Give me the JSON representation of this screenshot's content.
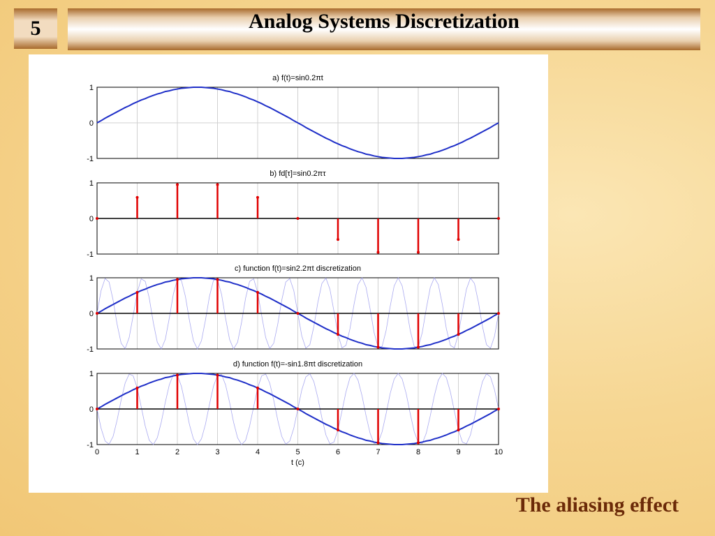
{
  "slide": {
    "number": "5",
    "title": "Analog Systems Discretization",
    "caption": "The aliasing effect"
  },
  "chart_data": [
    {
      "type": "line",
      "title": "a) f(t)=sin0.2πt",
      "xlim": [
        0,
        10
      ],
      "ylim": [
        -1,
        1
      ],
      "xticks": [
        0,
        1,
        2,
        3,
        4,
        5,
        6,
        7,
        8,
        9,
        10
      ],
      "yticks": [
        -1,
        0,
        1
      ],
      "grid": true,
      "x": [
        0,
        0.1,
        0.2,
        0.3,
        0.4,
        0.5,
        0.6,
        0.7,
        0.8,
        0.9,
        1,
        1.1,
        1.2,
        1.3,
        1.4,
        1.5,
        1.6,
        1.7,
        1.8,
        1.9,
        2,
        2.1,
        2.2,
        2.3,
        2.4,
        2.5,
        2.6,
        2.7,
        2.8,
        2.9,
        3,
        3.1,
        3.2,
        3.3,
        3.4,
        3.5,
        3.6,
        3.7,
        3.8,
        3.9,
        4,
        4.1,
        4.2,
        4.3,
        4.4,
        4.5,
        4.6,
        4.7,
        4.8,
        4.9,
        5,
        5.1,
        5.2,
        5.3,
        5.4,
        5.5,
        5.6,
        5.7,
        5.8,
        5.9,
        6,
        6.1,
        6.2,
        6.3,
        6.4,
        6.5,
        6.6,
        6.7,
        6.8,
        6.9,
        7,
        7.1,
        7.2,
        7.3,
        7.4,
        7.5,
        7.6,
        7.7,
        7.8,
        7.9,
        8,
        8.1,
        8.2,
        8.3,
        8.4,
        8.5,
        8.6,
        8.7,
        8.8,
        8.9,
        9,
        9.1,
        9.2,
        9.3,
        9.4,
        9.5,
        9.6,
        9.7,
        9.8,
        9.9,
        10
      ],
      "series": [
        {
          "type": "line",
          "color": "#1f2fc8",
          "values": [
            0,
            0.06,
            0.13,
            0.19,
            0.25,
            0.31,
            0.37,
            0.43,
            0.48,
            0.54,
            0.59,
            0.64,
            0.68,
            0.73,
            0.77,
            0.81,
            0.84,
            0.88,
            0.9,
            0.93,
            0.95,
            0.97,
            0.98,
            0.99,
            1,
            1,
            1,
            0.99,
            0.98,
            0.97,
            0.95,
            0.93,
            0.9,
            0.88,
            0.84,
            0.81,
            0.77,
            0.73,
            0.68,
            0.64,
            0.59,
            0.54,
            0.48,
            0.43,
            0.37,
            0.31,
            0.25,
            0.19,
            0.13,
            0.06,
            0,
            -0.06,
            -0.13,
            -0.19,
            -0.25,
            -0.31,
            -0.37,
            -0.43,
            -0.48,
            -0.54,
            -0.59,
            -0.64,
            -0.68,
            -0.73,
            -0.77,
            -0.81,
            -0.84,
            -0.88,
            -0.9,
            -0.93,
            -0.95,
            -0.97,
            -0.98,
            -0.99,
            -1,
            -1,
            -1,
            -0.99,
            -0.98,
            -0.97,
            -0.95,
            -0.93,
            -0.9,
            -0.88,
            -0.84,
            -0.81,
            -0.77,
            -0.73,
            -0.68,
            -0.64,
            -0.59,
            -0.54,
            -0.48,
            -0.43,
            -0.37,
            -0.31,
            -0.25,
            -0.19,
            -0.13,
            -0.06,
            0
          ]
        }
      ]
    },
    {
      "type": "stem",
      "title": "b) fd[τ]=sin0.2πτ",
      "xlim": [
        0,
        10
      ],
      "ylim": [
        -1,
        1
      ],
      "xticks": [
        0,
        1,
        2,
        3,
        4,
        5,
        6,
        7,
        8,
        9,
        10
      ],
      "yticks": [
        -1,
        0,
        1
      ],
      "grid": true,
      "series": [
        {
          "type": "stem",
          "color": "#e00000",
          "x": [
            0,
            1,
            2,
            3,
            4,
            5,
            6,
            7,
            8,
            9,
            10
          ],
          "values": [
            0,
            0.59,
            0.95,
            0.95,
            0.59,
            0,
            -0.59,
            -0.95,
            -0.95,
            -0.59,
            0
          ]
        }
      ]
    },
    {
      "type": "line",
      "title": "c) function f(t)=sin2.2πt discretization",
      "xlim": [
        0,
        10
      ],
      "ylim": [
        -1,
        1
      ],
      "xticks": [
        0,
        1,
        2,
        3,
        4,
        5,
        6,
        7,
        8,
        9,
        10
      ],
      "yticks": [
        -1,
        0,
        1
      ],
      "grid": true,
      "x": [
        0,
        0.1,
        0.2,
        0.3,
        0.4,
        0.5,
        0.6,
        0.7,
        0.8,
        0.9,
        1,
        1.1,
        1.2,
        1.3,
        1.4,
        1.5,
        1.6,
        1.7,
        1.8,
        1.9,
        2,
        2.1,
        2.2,
        2.3,
        2.4,
        2.5,
        2.6,
        2.7,
        2.8,
        2.9,
        3,
        3.1,
        3.2,
        3.3,
        3.4,
        3.5,
        3.6,
        3.7,
        3.8,
        3.9,
        4,
        4.1,
        4.2,
        4.3,
        4.4,
        4.5,
        4.6,
        4.7,
        4.8,
        4.9,
        5,
        5.1,
        5.2,
        5.3,
        5.4,
        5.5,
        5.6,
        5.7,
        5.8,
        5.9,
        6,
        6.1,
        6.2,
        6.3,
        6.4,
        6.5,
        6.6,
        6.7,
        6.8,
        6.9,
        7,
        7.1,
        7.2,
        7.3,
        7.4,
        7.5,
        7.6,
        7.7,
        7.8,
        7.9,
        8,
        8.1,
        8.2,
        8.3,
        8.4,
        8.5,
        8.6,
        8.7,
        8.8,
        8.9,
        9,
        9.1,
        9.2,
        9.3,
        9.4,
        9.5,
        9.6,
        9.7,
        9.8,
        9.9,
        10
      ],
      "series": [
        {
          "type": "line",
          "color": "#a9a9f0",
          "values": [
            0,
            0.64,
            0.98,
            0.88,
            0.37,
            -0.31,
            -0.84,
            -0.99,
            -0.68,
            -0.06,
            0.59,
            0.97,
            0.9,
            0.43,
            -0.25,
            -0.81,
            -1,
            -0.73,
            -0.13,
            0.54,
            0.95,
            0.93,
            0.48,
            -0.19,
            -0.77,
            -1,
            -0.77,
            -0.19,
            0.48,
            0.93,
            0.95,
            0.54,
            -0.13,
            -0.73,
            -1,
            -0.81,
            -0.25,
            0.43,
            0.9,
            0.97,
            0.59,
            -0.06,
            -0.68,
            -0.99,
            -0.84,
            -0.31,
            0.37,
            0.88,
            0.98,
            0.64,
            0,
            -0.64,
            -0.98,
            -0.88,
            -0.37,
            0.31,
            0.84,
            0.99,
            0.68,
            0.06,
            -0.59,
            -0.97,
            -0.9,
            -0.43,
            0.25,
            0.81,
            1,
            0.73,
            0.13,
            -0.54,
            -0.95,
            -0.93,
            -0.48,
            0.19,
            0.77,
            1,
            0.77,
            0.19,
            -0.48,
            -0.93,
            -0.95,
            -0.54,
            0.13,
            0.73,
            1,
            0.81,
            0.25,
            -0.43,
            -0.9,
            -0.97,
            -0.59,
            0.06,
            0.68,
            0.99,
            0.84,
            0.31,
            -0.37,
            -0.88,
            -0.98,
            -0.64,
            0
          ]
        },
        {
          "type": "line",
          "color": "#1f2fc8",
          "values": [
            0,
            0.06,
            0.13,
            0.19,
            0.25,
            0.31,
            0.37,
            0.43,
            0.48,
            0.54,
            0.59,
            0.64,
            0.68,
            0.73,
            0.77,
            0.81,
            0.84,
            0.88,
            0.9,
            0.93,
            0.95,
            0.97,
            0.98,
            0.99,
            1,
            1,
            1,
            0.99,
            0.98,
            0.97,
            0.95,
            0.93,
            0.9,
            0.88,
            0.84,
            0.81,
            0.77,
            0.73,
            0.68,
            0.64,
            0.59,
            0.54,
            0.48,
            0.43,
            0.37,
            0.31,
            0.25,
            0.19,
            0.13,
            0.06,
            0,
            -0.06,
            -0.13,
            -0.19,
            -0.25,
            -0.31,
            -0.37,
            -0.43,
            -0.48,
            -0.54,
            -0.59,
            -0.64,
            -0.68,
            -0.73,
            -0.77,
            -0.81,
            -0.84,
            -0.88,
            -0.9,
            -0.93,
            -0.95,
            -0.97,
            -0.98,
            -0.99,
            -1,
            -1,
            -1,
            -0.99,
            -0.98,
            -0.97,
            -0.95,
            -0.93,
            -0.9,
            -0.88,
            -0.84,
            -0.81,
            -0.77,
            -0.73,
            -0.68,
            -0.64,
            -0.59,
            -0.54,
            -0.48,
            -0.43,
            -0.37,
            -0.31,
            -0.25,
            -0.19,
            -0.13,
            -0.06,
            0
          ]
        },
        {
          "type": "stem",
          "color": "#e00000",
          "x": [
            0,
            1,
            2,
            3,
            4,
            5,
            6,
            7,
            8,
            9,
            10
          ],
          "values": [
            0,
            0.59,
            0.95,
            0.95,
            0.59,
            0,
            -0.59,
            -0.95,
            -0.95,
            -0.59,
            0
          ]
        }
      ]
    },
    {
      "type": "line",
      "title": "d) function f(t)=-sin1.8πt discretization",
      "xlabel": "t (c)",
      "xlim": [
        0,
        10
      ],
      "ylim": [
        -1,
        1
      ],
      "xticks": [
        0,
        1,
        2,
        3,
        4,
        5,
        6,
        7,
        8,
        9,
        10
      ],
      "yticks": [
        -1,
        0,
        1
      ],
      "grid": true,
      "x": [
        0,
        0.1,
        0.2,
        0.3,
        0.4,
        0.5,
        0.6,
        0.7,
        0.8,
        0.9,
        1,
        1.1,
        1.2,
        1.3,
        1.4,
        1.5,
        1.6,
        1.7,
        1.8,
        1.9,
        2,
        2.1,
        2.2,
        2.3,
        2.4,
        2.5,
        2.6,
        2.7,
        2.8,
        2.9,
        3,
        3.1,
        3.2,
        3.3,
        3.4,
        3.5,
        3.6,
        3.7,
        3.8,
        3.9,
        4,
        4.1,
        4.2,
        4.3,
        4.4,
        4.5,
        4.6,
        4.7,
        4.8,
        4.9,
        5,
        5.1,
        5.2,
        5.3,
        5.4,
        5.5,
        5.6,
        5.7,
        5.8,
        5.9,
        6,
        6.1,
        6.2,
        6.3,
        6.4,
        6.5,
        6.6,
        6.7,
        6.8,
        6.9,
        7,
        7.1,
        7.2,
        7.3,
        7.4,
        7.5,
        7.6,
        7.7,
        7.8,
        7.9,
        8,
        8.1,
        8.2,
        8.3,
        8.4,
        8.5,
        8.6,
        8.7,
        8.8,
        8.9,
        9,
        9.1,
        9.2,
        9.3,
        9.4,
        9.5,
        9.6,
        9.7,
        9.8,
        9.9,
        10
      ],
      "series": [
        {
          "type": "line",
          "color": "#a9a9f0",
          "values": [
            0,
            -0.54,
            -0.9,
            -0.99,
            -0.77,
            -0.31,
            0.25,
            0.73,
            0.98,
            0.93,
            0.59,
            0.06,
            -0.48,
            -0.88,
            -1,
            -0.81,
            -0.37,
            0.19,
            0.68,
            0.97,
            0.95,
            0.64,
            0.13,
            -0.43,
            -0.84,
            -1,
            -0.84,
            -0.43,
            0.13,
            0.64,
            0.95,
            0.97,
            0.68,
            0.19,
            -0.37,
            -0.81,
            -1,
            -0.88,
            -0.48,
            0.06,
            0.59,
            0.93,
            0.98,
            0.73,
            0.25,
            -0.31,
            -0.77,
            -0.99,
            -0.9,
            -0.54,
            0,
            0.54,
            0.9,
            0.99,
            0.77,
            0.31,
            -0.25,
            -0.73,
            -0.98,
            -0.93,
            -0.59,
            -0.06,
            0.48,
            0.88,
            1,
            0.81,
            0.37,
            -0.19,
            -0.68,
            -0.97,
            -0.95,
            -0.64,
            -0.13,
            0.43,
            0.84,
            1,
            0.84,
            0.43,
            -0.13,
            -0.64,
            -0.95,
            -0.97,
            -0.68,
            -0.19,
            0.37,
            0.81,
            1,
            0.88,
            0.48,
            -0.06,
            -0.59,
            -0.93,
            -0.98,
            -0.73,
            -0.25,
            0.31,
            0.77,
            0.99,
            0.9,
            0.54,
            0
          ]
        },
        {
          "type": "line",
          "color": "#1f2fc8",
          "values": [
            0,
            0.06,
            0.13,
            0.19,
            0.25,
            0.31,
            0.37,
            0.43,
            0.48,
            0.54,
            0.59,
            0.64,
            0.68,
            0.73,
            0.77,
            0.81,
            0.84,
            0.88,
            0.9,
            0.93,
            0.95,
            0.97,
            0.98,
            0.99,
            1,
            1,
            1,
            0.99,
            0.98,
            0.97,
            0.95,
            0.93,
            0.9,
            0.88,
            0.84,
            0.81,
            0.77,
            0.73,
            0.68,
            0.64,
            0.59,
            0.54,
            0.48,
            0.43,
            0.37,
            0.31,
            0.25,
            0.19,
            0.13,
            0.06,
            0,
            -0.06,
            -0.13,
            -0.19,
            -0.25,
            -0.31,
            -0.37,
            -0.43,
            -0.48,
            -0.54,
            -0.59,
            -0.64,
            -0.68,
            -0.73,
            -0.77,
            -0.81,
            -0.84,
            -0.88,
            -0.9,
            -0.93,
            -0.95,
            -0.97,
            -0.98,
            -0.99,
            -1,
            -1,
            -1,
            -0.99,
            -0.98,
            -0.97,
            -0.95,
            -0.93,
            -0.9,
            -0.88,
            -0.84,
            -0.81,
            -0.77,
            -0.73,
            -0.68,
            -0.64,
            -0.59,
            -0.54,
            -0.48,
            -0.43,
            -0.37,
            -0.31,
            -0.25,
            -0.19,
            -0.13,
            -0.06,
            0
          ]
        },
        {
          "type": "stem",
          "color": "#e00000",
          "x": [
            0,
            1,
            2,
            3,
            4,
            5,
            6,
            7,
            8,
            9,
            10
          ],
          "values": [
            0,
            0.59,
            0.95,
            0.95,
            0.59,
            0,
            -0.59,
            -0.95,
            -0.95,
            -0.59,
            0
          ]
        }
      ]
    }
  ]
}
